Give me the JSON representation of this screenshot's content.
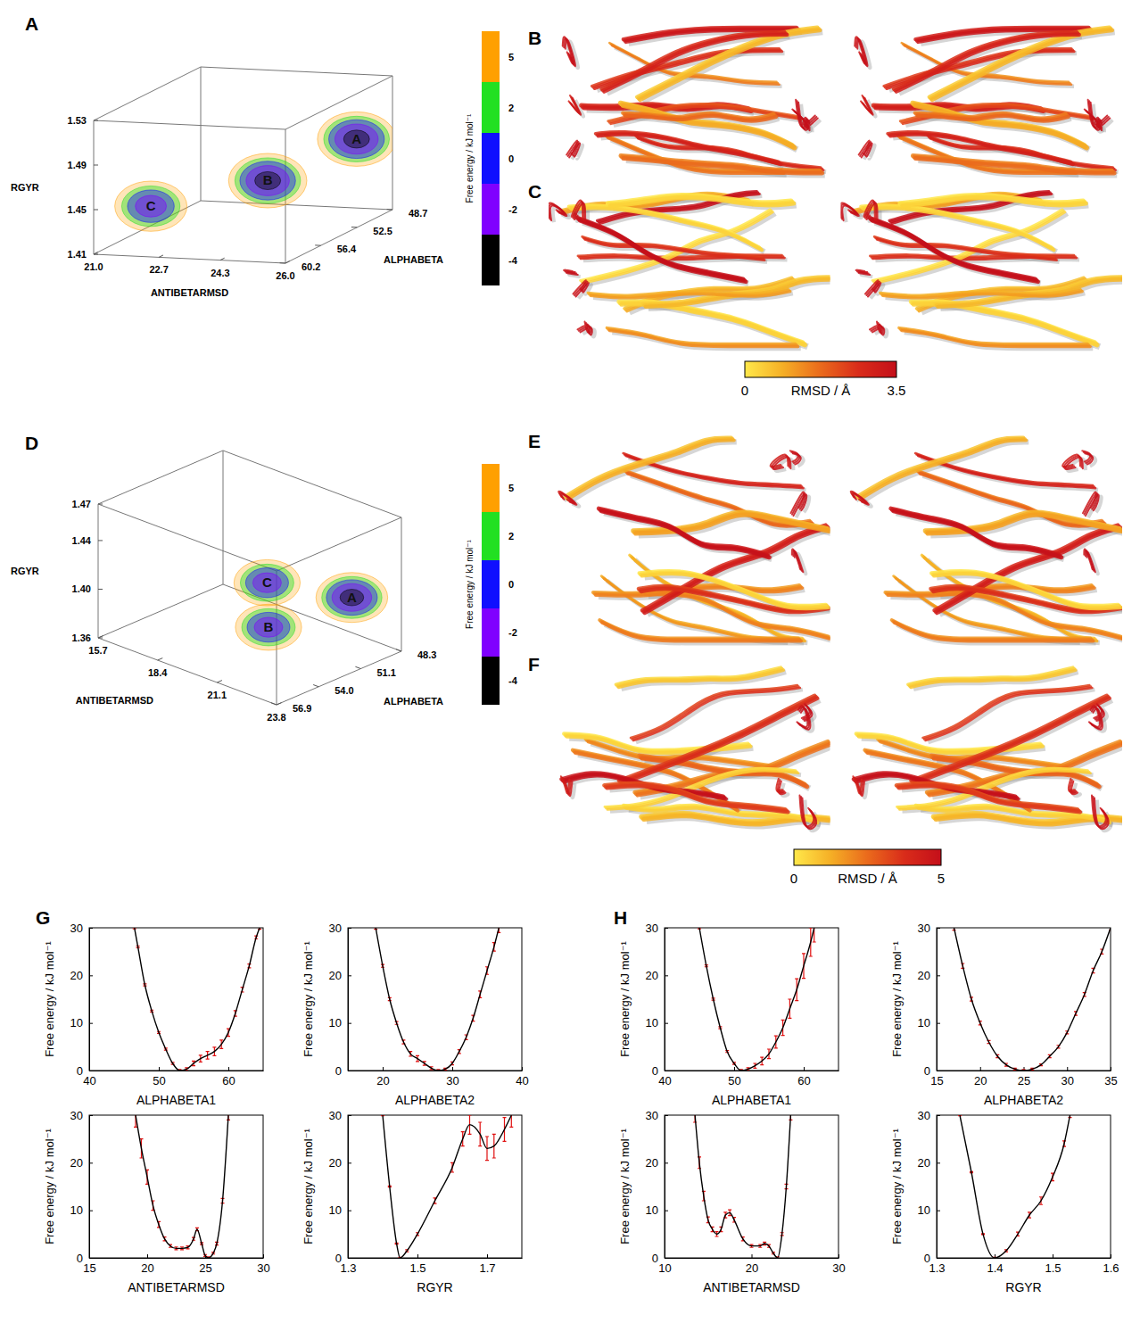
{
  "chart_data": [
    {
      "type": "isosurface_3d",
      "panel_label": "A",
      "x_label": "ANTIBETARMSD",
      "y_label": "ALPHABETA",
      "z_label": "RGYR",
      "xlim": [
        21.0,
        26.0
      ],
      "xticks": [
        {
          "value": 21.0,
          "label": "21.0"
        },
        22.7,
        24.3,
        {
          "value": 26.0,
          "label": "26.0"
        }
      ],
      "ylim": [
        48.7,
        60.2
      ],
      "yticks": [
        48.7,
        52.5,
        56.4,
        60.2
      ],
      "zlim": [
        1.41,
        1.53
      ],
      "zticks": [
        1.41,
        1.45,
        1.49,
        1.53
      ],
      "colorbar": {
        "label": "Free energy / kJ mol⁻¹",
        "ticks": [
          5,
          2,
          0,
          -2,
          -4
        ],
        "colors": [
          "#ffa000",
          "#22e022",
          "#1010ff",
          "#8000ff",
          "#000000"
        ]
      },
      "minima": [
        {
          "label": "A",
          "x": 25.5,
          "y": 50.5,
          "z": 1.48,
          "min_free_energy": -4.5
        },
        {
          "label": "B",
          "x": 24.3,
          "y": 55.1,
          "z": 1.46,
          "min_free_energy": -4.5
        },
        {
          "label": "C",
          "x": 22.2,
          "y": 59.0,
          "z": 1.45,
          "min_free_energy": -3
        }
      ]
    },
    {
      "type": "structure_render",
      "panel_labels": [
        "B",
        "C"
      ],
      "colorbar": {
        "label": "RMSD / Å",
        "range": [
          0,
          3.5
        ],
        "ticks": [
          0,
          3.5
        ]
      }
    },
    {
      "type": "isosurface_3d",
      "panel_label": "D",
      "x_label": "ANTIBETARMSD",
      "y_label": "ALPHABETA",
      "z_label": "RGYR",
      "xlim": [
        15.7,
        23.8
      ],
      "xticks": [
        15.7,
        18.4,
        21.1,
        23.8
      ],
      "ylim": [
        48.3,
        56.9
      ],
      "yticks": [
        48.3,
        51.1,
        {
          "value": 54.0,
          "label": "54.0"
        },
        56.9
      ],
      "zlim": [
        1.36,
        1.47
      ],
      "zticks": [
        1.36,
        {
          "value": 1.4,
          "label": "1.40"
        },
        1.44,
        1.47
      ],
      "colorbar": {
        "label": "Free energy / kJ mol⁻¹",
        "ticks": [
          5,
          2,
          0,
          -2,
          -4
        ],
        "colors": [
          "#ffa000",
          "#22e022",
          "#1010ff",
          "#8000ff",
          "#000000"
        ]
      },
      "minima": [
        {
          "label": "A",
          "x": 23.0,
          "y": 50.5,
          "z": 1.41,
          "min_free_energy": -4.5
        },
        {
          "label": "B",
          "x": 20.6,
          "y": 52.6,
          "z": 1.38,
          "min_free_energy": -3
        },
        {
          "label": "C",
          "x": 20.8,
          "y": 53.0,
          "z": 1.42,
          "min_free_energy": -3
        }
      ]
    },
    {
      "type": "structure_render",
      "panel_labels": [
        "E",
        "F"
      ],
      "colorbar": {
        "label": "RMSD / Å",
        "range": [
          0,
          5
        ],
        "ticks": [
          0,
          5
        ]
      }
    },
    {
      "type": "line",
      "panel_label": "G",
      "x_label": "ALPHABETA1",
      "y_label": "Free energy / kJ mol⁻¹",
      "color": "#000000",
      "xlim": [
        40,
        65
      ],
      "xticks": [
        40,
        50,
        60
      ],
      "ylim": [
        0,
        30
      ],
      "yticks": [
        0,
        10,
        20,
        30
      ],
      "x": [
        46.5,
        47,
        48,
        49,
        50,
        51,
        52,
        53,
        54,
        55,
        56,
        57,
        58,
        59,
        60,
        61,
        62,
        63,
        64,
        64.5
      ],
      "values": [
        30,
        26,
        18,
        12.5,
        8,
        4.5,
        1.5,
        0,
        0.3,
        1.5,
        2.5,
        3.2,
        4,
        5.5,
        8,
        12,
        17,
        22,
        28,
        30
      ],
      "errors": [
        0.2,
        0.2,
        0.2,
        0.2,
        0.2,
        0.2,
        0.2,
        0.2,
        0.3,
        0.5,
        0.7,
        0.8,
        0.9,
        0.9,
        0.8,
        0.6,
        0.5,
        0.4,
        0.3,
        0.3
      ]
    },
    {
      "type": "line",
      "x_label": "ALPHABETA2",
      "y_label": "Free energy / kJ mol⁻¹",
      "color": "#000000",
      "xlim": [
        15,
        40
      ],
      "xticks": [
        20,
        30,
        40
      ],
      "ylim": [
        0,
        30
      ],
      "yticks": [
        0,
        10,
        20,
        30
      ],
      "x": [
        19,
        20,
        21,
        22,
        23,
        24,
        25,
        26,
        27,
        28,
        29,
        30,
        31,
        32,
        33,
        34,
        35,
        36,
        36.7
      ],
      "values": [
        30,
        22,
        15,
        10,
        6,
        3.5,
        2.5,
        1.5,
        0.5,
        0,
        0.3,
        1.5,
        4,
        7,
        11,
        16,
        21,
        26,
        30
      ],
      "errors": [
        0.3,
        0.3,
        0.3,
        0.3,
        0.4,
        0.5,
        0.6,
        0.4,
        0.3,
        0.2,
        0.2,
        0.3,
        0.4,
        0.5,
        0.6,
        0.7,
        0.8,
        0.9,
        1
      ]
    },
    {
      "type": "line",
      "x_label": "ANTIBETARMSD",
      "y_label": "Free energy / kJ mol⁻¹",
      "color": "#000000",
      "xlim": [
        15,
        30
      ],
      "xticks": [
        15,
        20,
        25,
        30
      ],
      "ylim": [
        0,
        30
      ],
      "yticks": [
        0,
        10,
        20,
        30
      ],
      "x": [
        19,
        19.5,
        20,
        20.5,
        21,
        21.5,
        22,
        22.5,
        23,
        23.5,
        24,
        24.3,
        24.7,
        25,
        25.3,
        25.7,
        26,
        26.5,
        27
      ],
      "values": [
        30,
        23,
        17,
        11,
        7,
        4,
        2.5,
        2,
        2,
        2.2,
        4,
        6,
        3,
        0.5,
        0,
        1,
        3,
        12,
        30
      ],
      "errors": [
        2.5,
        2,
        1.5,
        1,
        0.6,
        0.4,
        0.3,
        0.3,
        0.3,
        0.3,
        0.3,
        0.3,
        0.2,
        0.2,
        0.2,
        0.2,
        0.3,
        0.5,
        1
      ]
    },
    {
      "type": "line",
      "x_label": "RGYR",
      "y_label": "Free energy / kJ mol⁻¹",
      "color": "#000000",
      "xlim": [
        1.3,
        1.8
      ],
      "xticks": [
        1.3,
        1.5,
        1.7
      ],
      "ylim": [
        0,
        30
      ],
      "yticks": [
        0,
        10,
        20,
        30
      ],
      "x": [
        1.4,
        1.42,
        1.44,
        1.45,
        1.47,
        1.5,
        1.55,
        1.6,
        1.63,
        1.65,
        1.68,
        1.7,
        1.72,
        1.75,
        1.77
      ],
      "values": [
        30,
        15,
        3,
        0,
        1.5,
        5,
        12,
        19,
        25,
        28,
        26,
        23,
        23.5,
        27,
        30
      ],
      "errors": [
        0.1,
        0.1,
        0.1,
        0.1,
        0.2,
        0.3,
        0.6,
        1,
        1.5,
        2,
        2.5,
        2.5,
        2.5,
        2.5,
        2.5
      ]
    },
    {
      "type": "line",
      "panel_label": "H",
      "x_label": "ALPHABETA1",
      "y_label": "Free energy / kJ mol⁻¹",
      "color": "#000000",
      "xlim": [
        40,
        65
      ],
      "xticks": [
        40,
        50,
        60
      ],
      "ylim": [
        0,
        30
      ],
      "yticks": [
        0,
        10,
        20,
        30
      ],
      "x": [
        45,
        46,
        47,
        48,
        49,
        50,
        51,
        52,
        53,
        54,
        55,
        56,
        57,
        58,
        59,
        60,
        61,
        61.5
      ],
      "values": [
        30,
        22,
        15,
        9,
        4,
        1.5,
        0,
        0.3,
        1,
        2,
        3.5,
        6,
        9,
        13,
        17,
        22,
        27,
        30
      ],
      "errors": [
        0.2,
        0.2,
        0.2,
        0.2,
        0.2,
        0.2,
        0.2,
        0.3,
        0.5,
        0.8,
        1,
        1.3,
        1.6,
        2,
        2.3,
        2.6,
        3,
        3
      ]
    },
    {
      "type": "line",
      "x_label": "ALPHABETA2",
      "y_label": "Free energy / kJ mol⁻¹",
      "color": "#000000",
      "xlim": [
        15,
        35
      ],
      "xticks": [
        15,
        20,
        25,
        30,
        35
      ],
      "ylim": [
        0,
        30
      ],
      "yticks": [
        0,
        10,
        20,
        30
      ],
      "x": [
        17,
        18,
        19,
        20,
        21,
        22,
        23,
        24,
        25,
        26,
        27,
        28,
        29,
        30,
        31,
        32,
        33,
        34,
        35
      ],
      "values": [
        30,
        22,
        15,
        10,
        6,
        3,
        1.2,
        0.3,
        0,
        0.3,
        1.2,
        3,
        5,
        8,
        12,
        16,
        21,
        25,
        30
      ],
      "errors": [
        0.5,
        0.5,
        0.4,
        0.4,
        0.3,
        0.3,
        0.3,
        0.2,
        0.2,
        0.2,
        0.2,
        0.3,
        0.3,
        0.3,
        0.4,
        0.4,
        0.5,
        0.5,
        0.5
      ]
    },
    {
      "type": "line",
      "x_label": "ANTIBETARMSD",
      "y_label": "Free energy / kJ mol⁻¹",
      "color": "#000000",
      "xlim": [
        10,
        30
      ],
      "xticks": [
        10,
        20,
        30
      ],
      "ylim": [
        0,
        30
      ],
      "yticks": [
        0,
        10,
        20,
        30
      ],
      "x": [
        13.5,
        14,
        14.5,
        15,
        15.5,
        16,
        16.5,
        17,
        17.5,
        18,
        19,
        20,
        21,
        21.5,
        22,
        22.5,
        23,
        23.5,
        24,
        24.5
      ],
      "values": [
        30,
        20,
        13,
        8,
        6,
        5,
        6,
        9,
        9.5,
        8,
        4,
        2.5,
        2.5,
        3,
        2.5,
        1,
        0,
        5,
        15,
        30
      ],
      "errors": [
        1.5,
        1.2,
        1,
        0.6,
        0.5,
        0.5,
        0.5,
        0.6,
        0.6,
        0.5,
        0.4,
        0.3,
        0.3,
        0.3,
        0.3,
        0.2,
        0.2,
        0.3,
        0.5,
        1
      ]
    },
    {
      "type": "line",
      "x_label": "RGYR",
      "y_label": "Free energy / kJ mol⁻¹",
      "color": "#000000",
      "xlim": [
        1.3,
        1.6
      ],
      "xticks": [
        1.3,
        1.4,
        1.5,
        1.6
      ],
      "ylim": [
        0,
        30
      ],
      "yticks": [
        0,
        10,
        20,
        30
      ],
      "x": [
        1.34,
        1.36,
        1.38,
        1.4,
        1.42,
        1.44,
        1.46,
        1.48,
        1.5,
        1.52,
        1.53
      ],
      "values": [
        30,
        18,
        5,
        0,
        1.5,
        5,
        9,
        12,
        17,
        24,
        30
      ],
      "errors": [
        0.1,
        0.1,
        0.1,
        0.1,
        0.2,
        0.4,
        0.6,
        0.8,
        0.8,
        0.6,
        0.5
      ]
    }
  ]
}
